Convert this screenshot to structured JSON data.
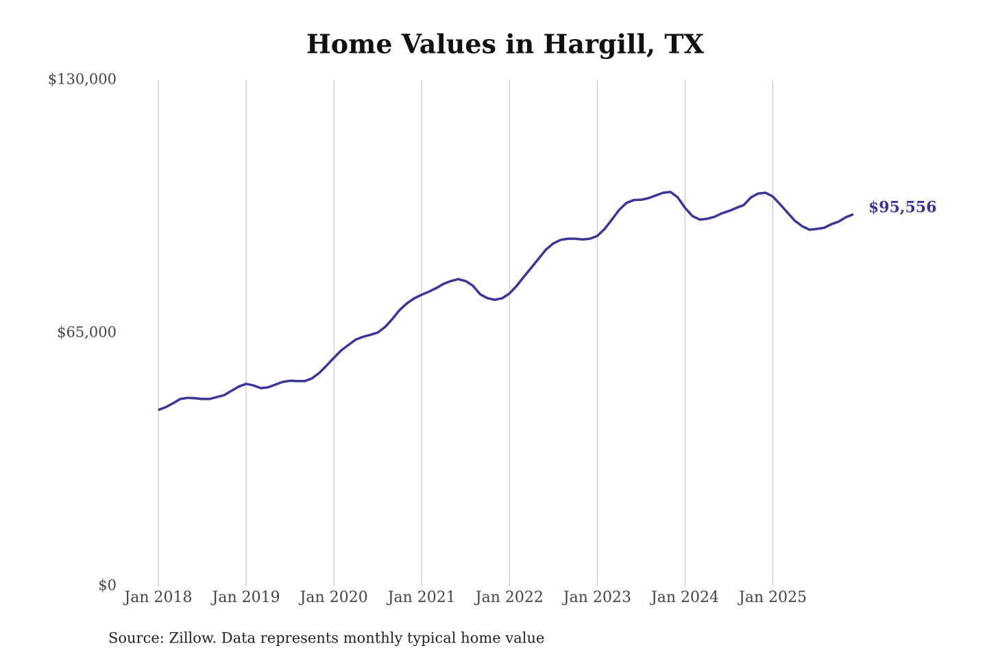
{
  "chart_data": {
    "type": "line",
    "title": "Home Values in Hargill, TX",
    "source": "Source: Zillow. Data represents monthly typical home value",
    "x": [
      "2018-01",
      "2018-02",
      "2018-03",
      "2018-04",
      "2018-05",
      "2018-06",
      "2018-07",
      "2018-08",
      "2018-09",
      "2018-10",
      "2018-11",
      "2018-12",
      "2019-01",
      "2019-02",
      "2019-03",
      "2019-04",
      "2019-05",
      "2019-06",
      "2019-07",
      "2019-08",
      "2019-09",
      "2019-10",
      "2019-11",
      "2019-12",
      "2020-01",
      "2020-02",
      "2020-03",
      "2020-04",
      "2020-05",
      "2020-06",
      "2020-07",
      "2020-08",
      "2020-09",
      "2020-10",
      "2020-11",
      "2020-12",
      "2021-01",
      "2021-02",
      "2021-03",
      "2021-04",
      "2021-05",
      "2021-06",
      "2021-07",
      "2021-08",
      "2021-09",
      "2021-10",
      "2021-11",
      "2021-12",
      "2022-01",
      "2022-02",
      "2022-03",
      "2022-04",
      "2022-05",
      "2022-06",
      "2022-07",
      "2022-08",
      "2022-09",
      "2022-10",
      "2022-11",
      "2022-12",
      "2023-01",
      "2023-02",
      "2023-03",
      "2023-04",
      "2023-05",
      "2023-06",
      "2023-07",
      "2023-08",
      "2023-09",
      "2023-10",
      "2023-11",
      "2023-12",
      "2024-01",
      "2024-02",
      "2024-03",
      "2024-04",
      "2024-05",
      "2024-06",
      "2024-07",
      "2024-08",
      "2024-09",
      "2024-10",
      "2024-11",
      "2024-12",
      "2025-01",
      "2025-02",
      "2025-03",
      "2025-04",
      "2025-05",
      "2025-06",
      "2025-07",
      "2025-08",
      "2025-09",
      "2025-10",
      "2025-11",
      "2025-12"
    ],
    "series": [
      {
        "name": "Home value",
        "color": "#3a3596",
        "values": [
          45300,
          46000,
          47000,
          48100,
          48400,
          48300,
          48100,
          48100,
          48600,
          49100,
          50200,
          51300,
          52000,
          51600,
          50900,
          51100,
          51800,
          52500,
          52800,
          52700,
          52700,
          53400,
          54800,
          56700,
          58700,
          60600,
          62000,
          63400,
          64100,
          64600,
          65200,
          66600,
          68700,
          71000,
          72700,
          74000,
          74900,
          75700,
          76600,
          77700,
          78400,
          78900,
          78400,
          77200,
          75000,
          74000,
          73600,
          74000,
          75200,
          77200,
          79600,
          81900,
          84200,
          86500,
          88100,
          89000,
          89300,
          89300,
          89100,
          89300,
          90000,
          91800,
          94200,
          96700,
          98500,
          99200,
          99300,
          99700,
          100400,
          101100,
          101300,
          99900,
          97200,
          95100,
          94200,
          94400,
          94900,
          95800,
          96400,
          97200,
          97900,
          99900,
          100900,
          101100,
          100100,
          98100,
          96000,
          93900,
          92500,
          91600,
          91800,
          92100,
          93000,
          93700,
          94800,
          95556
        ]
      }
    ],
    "end_label": "$95,556",
    "xlim": [
      "2018-01",
      "2025-12"
    ],
    "xticks": [
      {
        "value": "2018-01",
        "label": "Jan 2018"
      },
      {
        "value": "2019-01",
        "label": "Jan 2019"
      },
      {
        "value": "2020-01",
        "label": "Jan 2020"
      },
      {
        "value": "2021-01",
        "label": "Jan 2021"
      },
      {
        "value": "2022-01",
        "label": "Jan 2022"
      },
      {
        "value": "2023-01",
        "label": "Jan 2023"
      },
      {
        "value": "2024-01",
        "label": "Jan 2024"
      },
      {
        "value": "2025-01",
        "label": "Jan 2025"
      }
    ],
    "ylim": [
      0,
      130000
    ],
    "yticks": [
      {
        "value": 0,
        "label": "$0"
      },
      {
        "value": 65000,
        "label": "$65,000"
      },
      {
        "value": 130000,
        "label": "$130,000"
      }
    ],
    "grid": "x"
  }
}
